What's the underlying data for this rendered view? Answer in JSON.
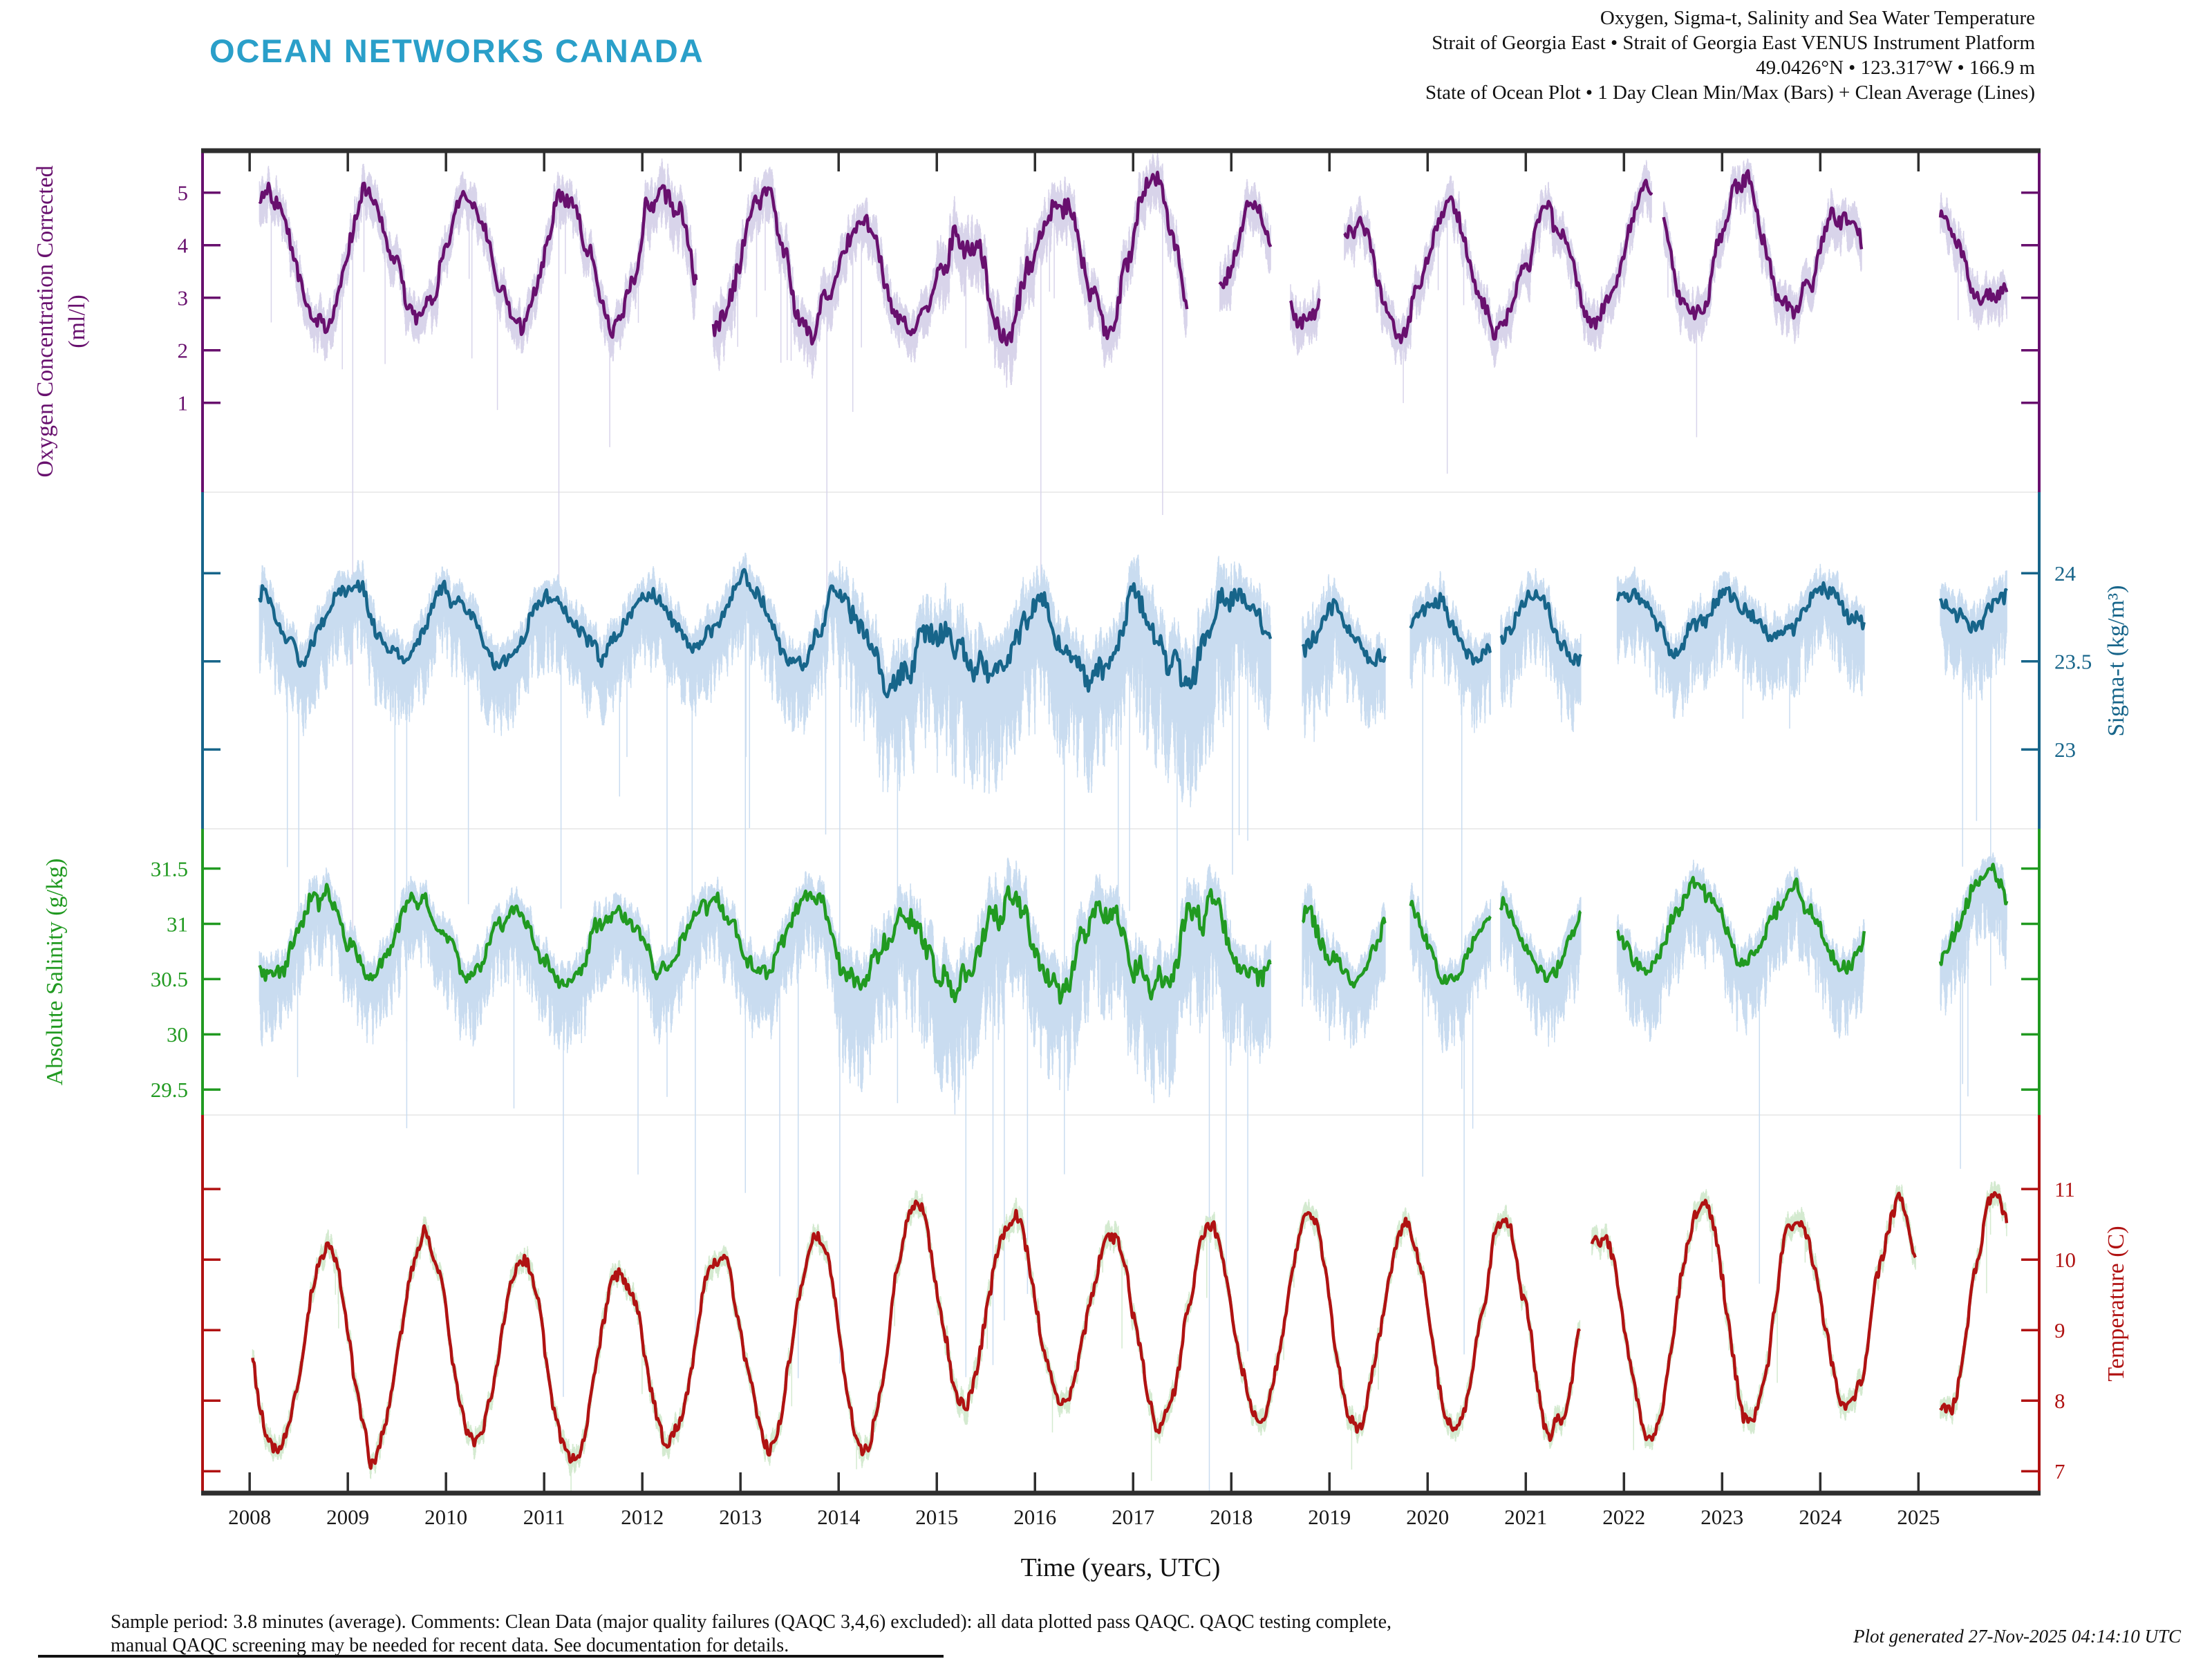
{
  "logo": {
    "text": "OCEAN NETWORKS CANADA",
    "color": "#2a9fc9"
  },
  "header": {
    "line1": "Oxygen, Sigma-t, Salinity and Sea Water Temperature",
    "line2": "Strait of Georgia East • Strait of Georgia East VENUS Instrument Platform",
    "line3": "49.0426°N • 123.317°W • 166.9 m",
    "line4": "State of Ocean Plot • 1 Day Clean Min/Max (Bars) + Clean Average (Lines)"
  },
  "footer": {
    "line1": "Sample period: 3.8 minutes (average). Comments: Clean Data (major quality failures (QAQC 3,4,6) excluded): all data plotted pass QAQC. QAQC testing complete,",
    "line2": "manual QAQC screening may be needed for recent data. See documentation for details.",
    "generated": "Plot generated 27-Nov-2025 04:14:10 UTC"
  },
  "xaxis": {
    "label": "Time (years, UTC)",
    "ticks": [
      2008,
      2009,
      2010,
      2011,
      2012,
      2013,
      2014,
      2015,
      2016,
      2017,
      2018,
      2019,
      2020,
      2021,
      2022,
      2023,
      2024,
      2025
    ],
    "view_range": [
      2007.52,
      2026.23
    ],
    "frame_color": "#2e2e2e",
    "boundary_color": "#ececec"
  },
  "chart_data": {
    "type": "line",
    "title": "Oxygen, Sigma-t, Salinity and Sea Water Temperature — 1 Day Clean Min/Max (Bars) + Clean Average (Lines)",
    "x_range": [
      2008.1,
      2025.9
    ],
    "series": [
      {
        "id": "oxygen",
        "axis_title": "Oxygen Concentration Corrected",
        "axis_title_line2": "(ml/l)",
        "unit": "ml/l",
        "side": "left",
        "color": "#68106e",
        "band_color": "#d8d4ea",
        "ticks": [
          5,
          4,
          3,
          2,
          1
        ],
        "ylim": [
          5.8,
          -0.7
        ],
        "phase_high": 0.22,
        "t_start": 2008.1,
        "t_end": 2025.9,
        "annual_high_low": {
          "2008": [
            4.9,
            2.5
          ],
          "2009": [
            4.9,
            2.5
          ],
          "2010": [
            5.0,
            2.6
          ],
          "2011": [
            4.9,
            2.5
          ],
          "2012": [
            5.3,
            2.6
          ],
          "2013": [
            5.0,
            2.5
          ],
          "2014": [
            4.6,
            2.4
          ],
          "2015": [
            3.9,
            2.4
          ],
          "2016": [
            5.0,
            2.5
          ],
          "2017": [
            5.2,
            2.5
          ],
          "2018": [
            4.6,
            2.6
          ],
          "2019": [
            4.4,
            2.5
          ],
          "2020": [
            4.7,
            2.5
          ],
          "2021": [
            4.5,
            2.3
          ],
          "2022": [
            4.8,
            2.5
          ],
          "2023": [
            5.4,
            2.6
          ],
          "2024": [
            4.7,
            2.7
          ],
          "2025": [
            4.5,
            2.8
          ],
          "2026": [
            4.5,
            2.8
          ]
        },
        "gaps": [
          [
            2012.55,
            2012.72
          ],
          [
            2017.55,
            2017.88
          ],
          [
            2018.4,
            2018.6
          ],
          [
            2018.9,
            2019.15
          ],
          [
            2022.28,
            2022.4
          ],
          [
            2024.42,
            2025.22
          ]
        ],
        "jitter": {
          "slow": 0.26,
          "fast": 0.15
        },
        "band": {
          "up": 0.32,
          "down": 0.45
        },
        "noisy_years": {
          "2012": 1.3,
          "2013": 1.15,
          "2015": 1.45,
          "2016": 1.25,
          "2017": 1.2
        },
        "spikes": [
          [
            2009.05,
            14
          ],
          [
            2011.15,
            8
          ],
          [
            2013.88,
            7
          ],
          [
            2016.06,
            7
          ],
          [
            2017.3,
            6
          ],
          [
            2020.2,
            5
          ]
        ]
      },
      {
        "id": "sigma-t",
        "axis_title": "Sigma-t (kg/m³)",
        "axis_title_line2": "",
        "unit": "kg/m³",
        "side": "right",
        "color": "#17658a",
        "band_color": "#c9dcf0",
        "ticks": [
          24,
          23.5,
          23
        ],
        "ylim": [
          24.46,
          22.55
        ],
        "phase_high": 0.04,
        "t_start": 2008.1,
        "t_end": 2025.9,
        "annual_high_low": {
          "2008": [
            23.92,
            23.55
          ],
          "2009": [
            23.95,
            23.5
          ],
          "2010": [
            23.88,
            23.55
          ],
          "2011": [
            23.85,
            23.5
          ],
          "2012": [
            23.9,
            23.58
          ],
          "2013": [
            23.95,
            23.62
          ],
          "2014": [
            23.9,
            23.42
          ],
          "2015": [
            23.65,
            23.35
          ],
          "2016": [
            23.78,
            23.48
          ],
          "2017": [
            23.85,
            23.3
          ],
          "2018": [
            23.88,
            23.55
          ],
          "2019": [
            23.78,
            23.45
          ],
          "2020": [
            23.85,
            23.52
          ],
          "2021": [
            23.85,
            23.5
          ],
          "2022": [
            23.9,
            23.55
          ],
          "2023": [
            23.9,
            23.6
          ],
          "2024": [
            23.95,
            23.6
          ],
          "2025": [
            23.92,
            23.72
          ],
          "2026": [
            23.92,
            23.72
          ]
        },
        "gaps": [
          [
            2018.4,
            2018.72
          ],
          [
            2019.57,
            2019.82
          ],
          [
            2020.64,
            2020.74
          ],
          [
            2021.56,
            2021.93
          ],
          [
            2024.45,
            2025.22
          ]
        ],
        "jitter": {
          "slow": 0.055,
          "fast": 0.04
        },
        "band": {
          "up": 0.1,
          "down": 0.32
        },
        "noisy_years": {
          "2014": 1.5,
          "2015": 1.7,
          "2016": 1.5,
          "2017": 1.7,
          "2018": 1.35
        },
        "spikes": [
          [
            2009.6,
            2.2
          ],
          [
            2013.05,
            2.4
          ],
          [
            2016.3,
            2.0
          ],
          [
            2019.95,
            2.5
          ],
          [
            2025.45,
            1.4
          ]
        ]
      },
      {
        "id": "salinity",
        "axis_title": "Absolute Salinity (g/kg)",
        "axis_title_line2": "",
        "unit": "g/kg",
        "side": "left",
        "color": "#219a21",
        "band_color": "#c9dcf0",
        "ticks": [
          31.5,
          31,
          30.5,
          30,
          29.5
        ],
        "ylim": [
          31.86,
          29.27
        ],
        "phase_high": 0.72,
        "t_start": 2008.1,
        "t_end": 2025.9,
        "annual_high_low": {
          "2008": [
            31.2,
            30.5
          ],
          "2009": [
            31.3,
            30.55
          ],
          "2010": [
            31.2,
            30.6
          ],
          "2011": [
            31.1,
            30.45
          ],
          "2012": [
            31.2,
            30.55
          ],
          "2013": [
            31.25,
            30.6
          ],
          "2014": [
            31.2,
            30.5
          ],
          "2015": [
            31.1,
            30.4
          ],
          "2016": [
            31.2,
            30.55
          ],
          "2017": [
            31.15,
            30.35
          ],
          "2018": [
            31.15,
            30.6
          ],
          "2019": [
            31.1,
            30.5
          ],
          "2020": [
            31.2,
            30.55
          ],
          "2021": [
            31.15,
            30.5
          ],
          "2022": [
            31.25,
            30.6
          ],
          "2023": [
            31.45,
            30.65
          ],
          "2024": [
            31.3,
            30.6
          ],
          "2025": [
            31.5,
            30.7
          ],
          "2026": [
            31.5,
            30.7
          ]
        },
        "gaps": [
          [
            2018.4,
            2018.72
          ],
          [
            2019.57,
            2019.82
          ],
          [
            2020.64,
            2020.74
          ],
          [
            2021.56,
            2021.93
          ],
          [
            2024.45,
            2025.22
          ]
        ],
        "jitter": {
          "slow": 0.1,
          "fast": 0.065
        },
        "band": {
          "up": 0.14,
          "down": 0.48
        },
        "noisy_years": {
          "2014": 1.5,
          "2015": 1.6,
          "2016": 1.45,
          "2017": 1.6,
          "2018": 1.3
        },
        "spikes": [
          [
            2009.6,
            2.0
          ],
          [
            2013.05,
            2.2
          ],
          [
            2016.3,
            1.8
          ],
          [
            2019.95,
            2.2
          ],
          [
            2025.45,
            1.5
          ]
        ]
      },
      {
        "id": "temperature",
        "axis_title": "Temperature (C)",
        "axis_title_line2": "",
        "unit": "C",
        "side": "right",
        "color": "#b01212",
        "band_color": "#d4ead0",
        "ticks": [
          11,
          10,
          9,
          8,
          7
        ],
        "ylim": [
          12.05,
          6.69
        ],
        "phase_high": 0.78,
        "t_start": 2008.03,
        "t_end": 2025.9,
        "annual_high_low": {
          "2008": [
            10.0,
            7.3
          ],
          "2009": [
            10.3,
            7.05
          ],
          "2010": [
            10.3,
            7.6
          ],
          "2011": [
            9.9,
            7.1
          ],
          "2012": [
            9.8,
            7.35
          ],
          "2013": [
            10.2,
            7.5
          ],
          "2014": [
            10.4,
            7.15
          ],
          "2015": [
            10.9,
            7.9
          ],
          "2016": [
            10.5,
            8.0
          ],
          "2017": [
            10.4,
            7.6
          ],
          "2018": [
            10.5,
            7.8
          ],
          "2019": [
            10.6,
            7.6
          ],
          "2020": [
            10.4,
            7.7
          ],
          "2021": [
            10.5,
            7.6
          ],
          "2022": [
            10.3,
            7.4
          ],
          "2023": [
            11.0,
            7.7
          ],
          "2024": [
            10.6,
            7.8
          ],
          "2025": [
            10.8,
            7.9
          ],
          "2026": [
            10.8,
            7.9
          ]
        },
        "gaps": [
          [
            2021.55,
            2021.67
          ],
          [
            2024.97,
            2025.22
          ]
        ],
        "jitter": {
          "slow": 0.15,
          "fast": 0.09
        },
        "band": {
          "up": 0.15,
          "down": 0.15
        },
        "noisy_years": {
          "2015": 1.15,
          "2023": 1.1
        },
        "spikes": []
      }
    ]
  }
}
